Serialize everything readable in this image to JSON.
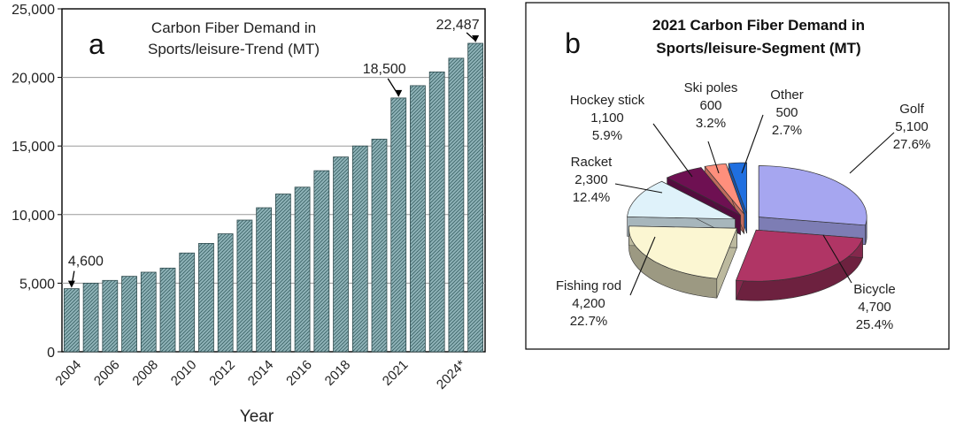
{
  "chart_data": [
    {
      "type": "bar",
      "panel_label": "a",
      "title_line1": "Carbon Fiber Demand in",
      "title_line2": "Sports/leisure-Trend  (MT)",
      "xlabel": "Year",
      "ylabel": "",
      "ylim": [
        0,
        25000
      ],
      "yticks": [
        "0",
        "5,000",
        "10,000",
        "15,000",
        "20,000",
        "25,000"
      ],
      "ytick_values": [
        0,
        5000,
        10000,
        15000,
        20000,
        25000
      ],
      "x_tick_labels": [
        "2004",
        "2006",
        "2008",
        "2010",
        "2012",
        "2014",
        "2016",
        "2018",
        "2021",
        "2024*"
      ],
      "x_tick_bar_index": [
        0,
        2,
        4,
        6,
        8,
        10,
        12,
        14,
        17,
        20
      ],
      "values": [
        4600,
        5000,
        5200,
        5500,
        5800,
        6100,
        7200,
        7900,
        8600,
        9600,
        10500,
        11500,
        12000,
        13200,
        14200,
        15000,
        15500,
        18500,
        19400,
        20400,
        21400,
        22487
      ],
      "annotations": [
        {
          "text": "4,600",
          "bar_index": 0
        },
        {
          "text": "18,500",
          "bar_index": 17
        },
        {
          "text": "22,487",
          "bar_index": 21
        }
      ],
      "bar_color": "#8fb3b8",
      "grid": true
    },
    {
      "type": "pie",
      "panel_label": "b",
      "title_line1": "2021 Carbon Fiber Demand in",
      "title_line2": "Sports/leisure-Segment (MT)",
      "slices": [
        {
          "name": "Golf",
          "value": "5,100",
          "percent": "27.6%",
          "amount": 5100,
          "color": "#a6a6f0"
        },
        {
          "name": "Bicycle",
          "value": "4,700",
          "percent": "25.4%",
          "amount": 4700,
          "color": "#b03565"
        },
        {
          "name": "Fishing rod",
          "value": "4,200",
          "percent": "22.7%",
          "amount": 4200,
          "color": "#fbf6d2"
        },
        {
          "name": "Racket",
          "value": "2,300",
          "percent": "12.4%",
          "amount": 2300,
          "color": "#dff2fa"
        },
        {
          "name": "Hockey stick",
          "value": "1,100",
          "percent": "5.9%",
          "amount": 1100,
          "color": "#6e1052"
        },
        {
          "name": "Ski poles",
          "value": "600",
          "percent": "3.2%",
          "amount": 600,
          "color": "#ff8f7c"
        },
        {
          "name": "Other",
          "value": "500",
          "percent": "2.7%",
          "amount": 500,
          "color": "#1f6fe0"
        }
      ]
    }
  ]
}
